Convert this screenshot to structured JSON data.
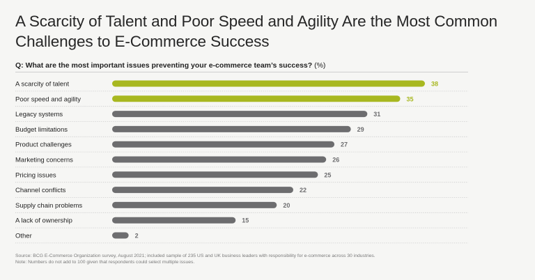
{
  "title": "A Scarcity of Talent and Poor Speed and Agility Are the Most Common Challenges to E-Commerce Success",
  "question": "Q: What are the most important issues preventing your e-commerce team’s success?",
  "unit": "(%)",
  "colors": {
    "highlight": "#a8b820",
    "default": "#6d6d6f",
    "highlight_text": "#a8b820",
    "default_text": "#6d6d6f"
  },
  "chart_data": {
    "type": "bar",
    "orientation": "horizontal",
    "title": "Q: What are the most important issues preventing your e-commerce team’s success? (%)",
    "categories": [
      "A scarcity of talent",
      "Poor speed and agility",
      "Legacy systems",
      "Budget limitations",
      "Product challenges",
      "Marketing concerns",
      "Pricing issues",
      "Channel conflicts",
      "Supply chain problems",
      "A lack of ownership",
      "Other"
    ],
    "values": [
      38,
      35,
      31,
      29,
      27,
      26,
      25,
      22,
      20,
      15,
      2
    ],
    "highlighted": [
      true,
      true,
      false,
      false,
      false,
      false,
      false,
      false,
      false,
      false,
      false
    ],
    "xlim": [
      0,
      38
    ]
  },
  "source": "Source: BCG E-Commerce Organization survey, August 2021; included sample of 235 US and UK business leaders with responsibility for e-commerce across 30 industries.",
  "note": "Note: Numbers do not add to 100 given that respondents could select multiple issues."
}
